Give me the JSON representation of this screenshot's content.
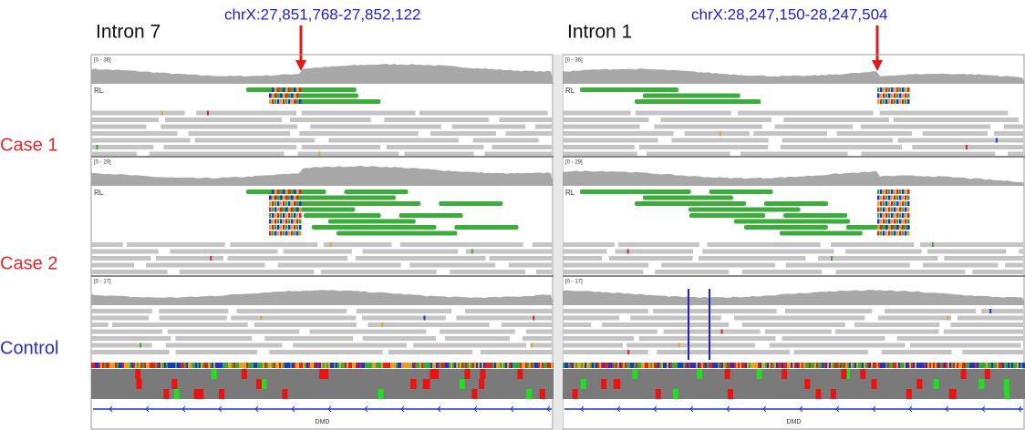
{
  "samples": [
    {
      "label": "Case 1",
      "color": "#e8262b"
    },
    {
      "label": "Case 2",
      "color": "#e8262b"
    },
    {
      "label": "Control",
      "color": "#2a2ad0"
    }
  ],
  "panels": [
    {
      "title": "Intron 7",
      "locus": "chrX:27,851,768-27,852,122",
      "tracks": [
        {
          "range": "[0 - 36]",
          "label": "RL"
        },
        {
          "range": "[0 - 29]",
          "label": "RL"
        },
        {
          "range": "[0 - 17]"
        }
      ],
      "gene": "DMD"
    },
    {
      "title": "Intron 1",
      "locus": "chrX:28,247,150-28,247,504",
      "tracks": [
        {
          "range": "[0 - 36]",
          "label": "RL"
        },
        {
          "range": "[0 - 29]",
          "label": "RL"
        },
        {
          "range": "[0 - 17]"
        }
      ],
      "gene": "DMD"
    }
  ]
}
